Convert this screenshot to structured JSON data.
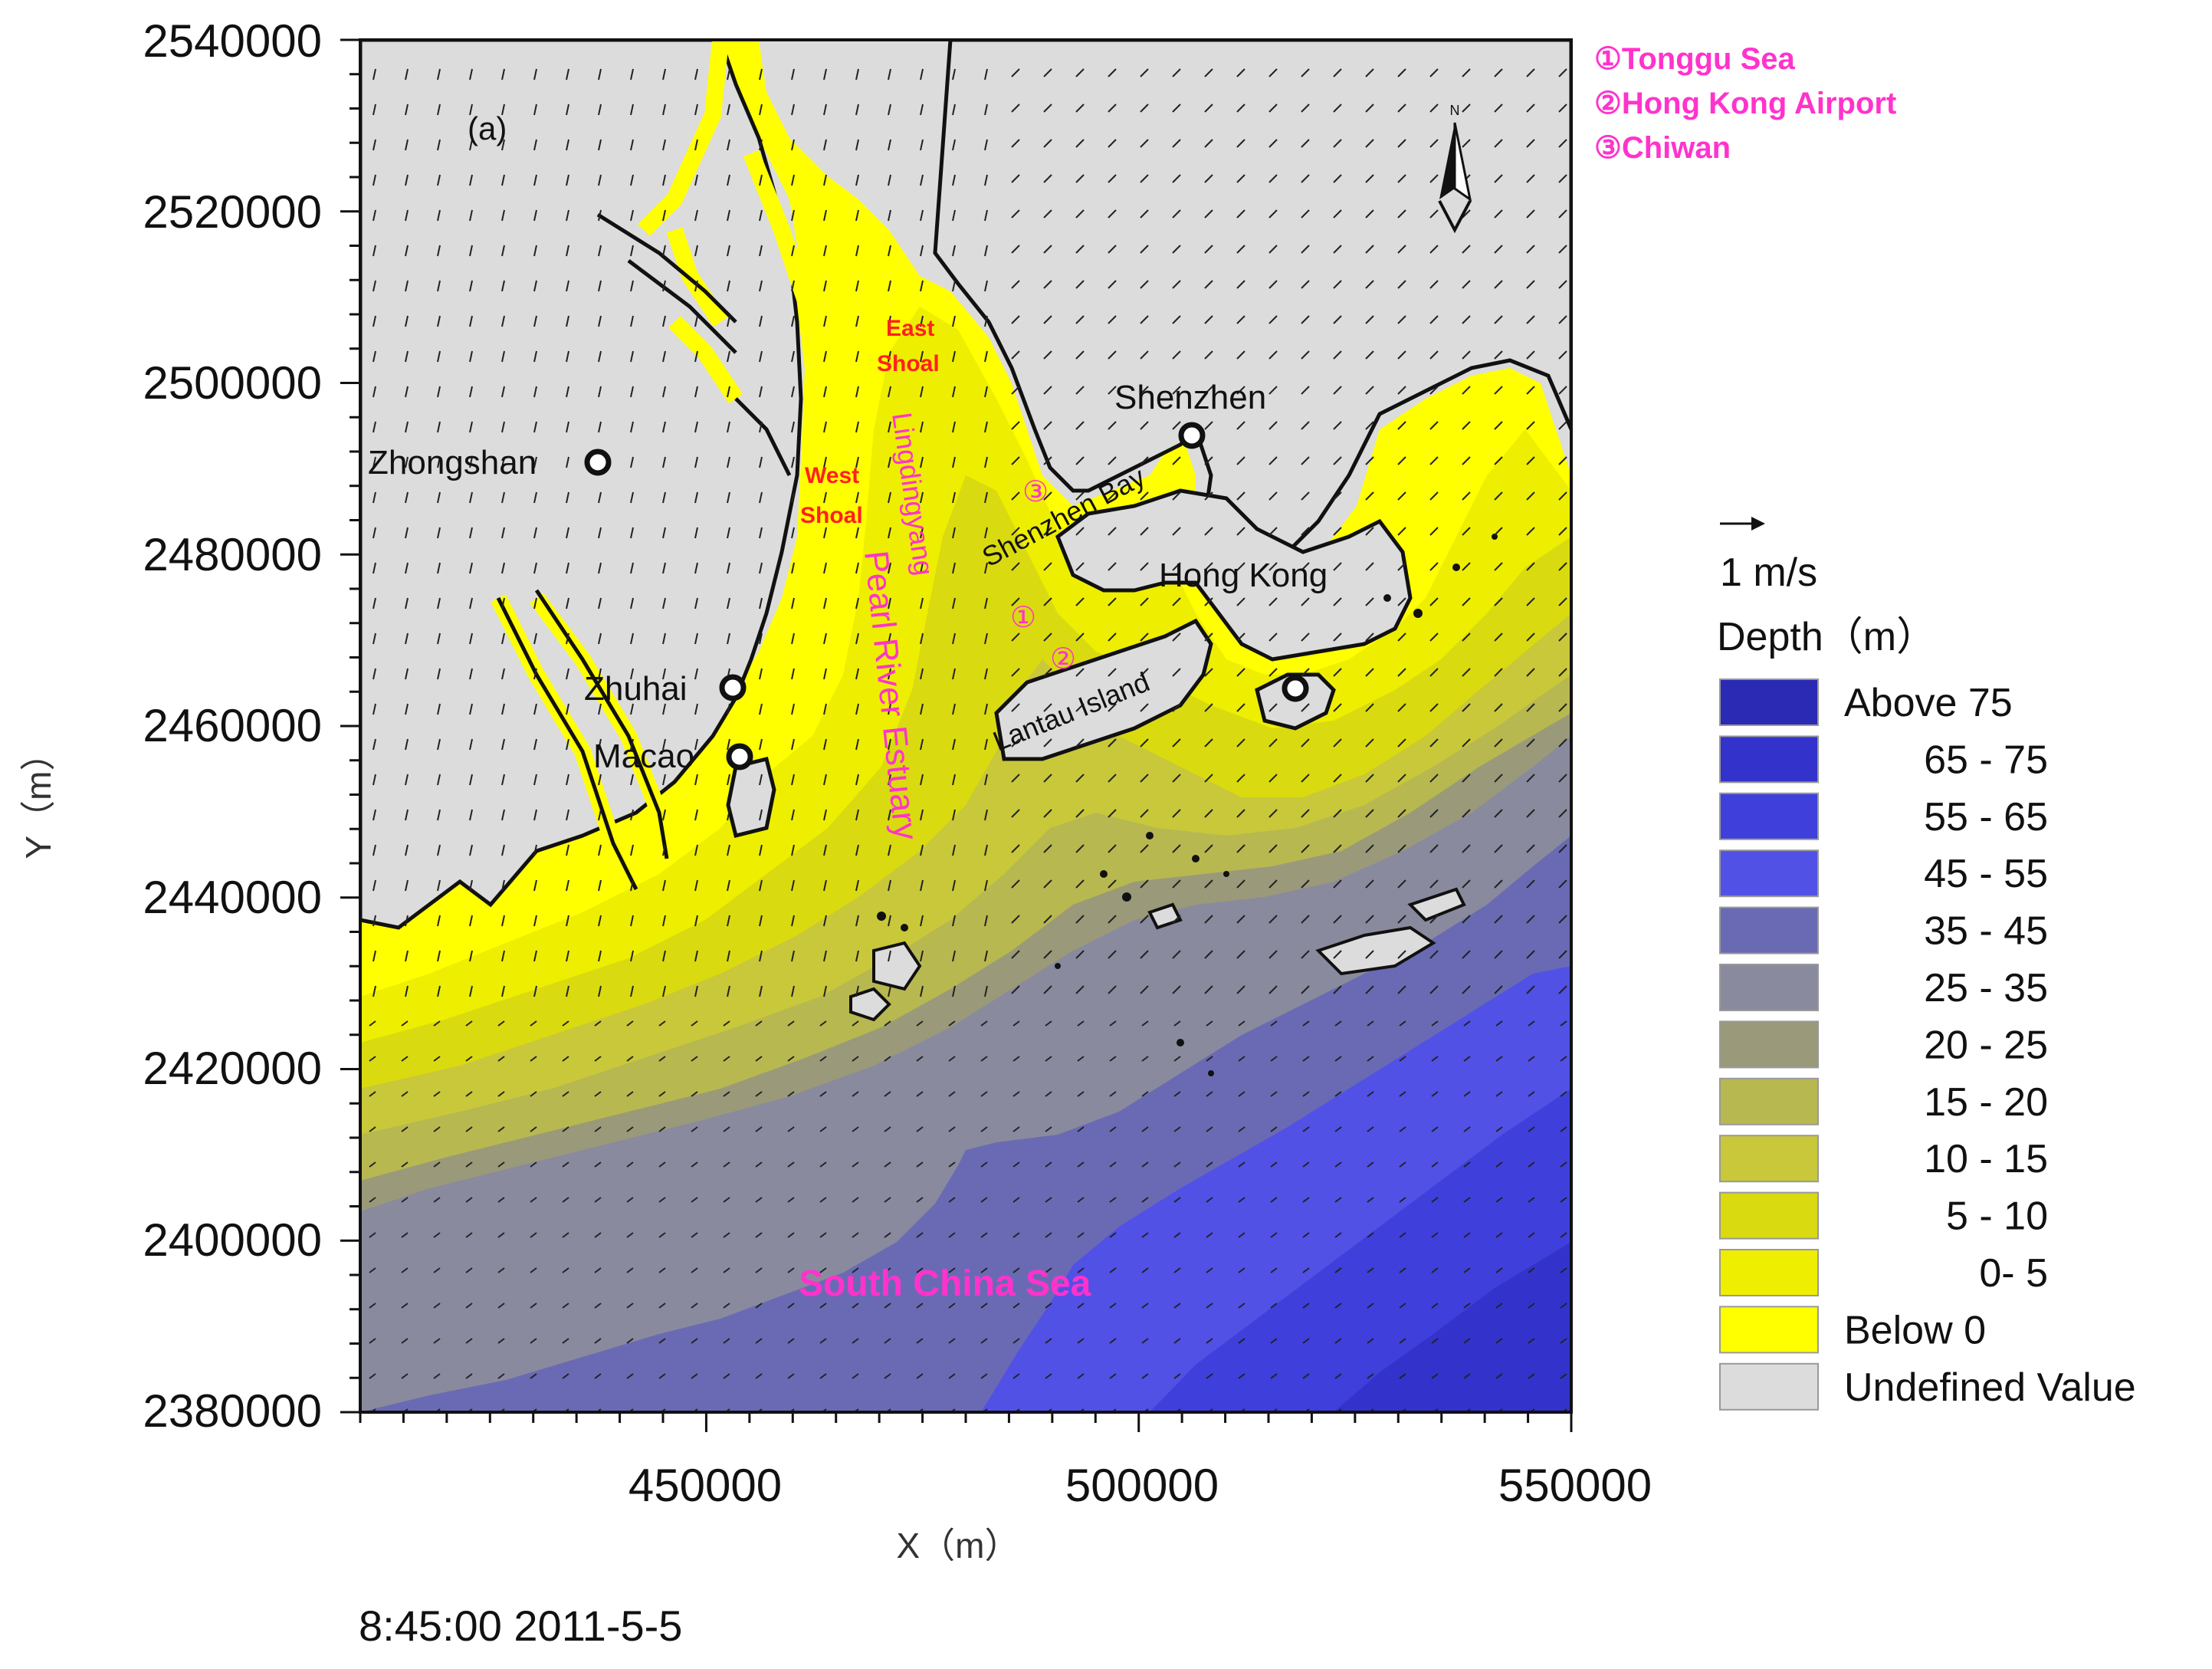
{
  "map": {
    "panel_label": "(a)",
    "x_axis": {
      "label": "X（m）",
      "range": [
        410000,
        550000
      ],
      "ticks": [
        "450000",
        "500000",
        "550000"
      ]
    },
    "y_axis": {
      "label": "Y（m）",
      "range": [
        2380000,
        2540000
      ],
      "ticks": [
        "2540000",
        "2520000",
        "2500000",
        "2480000",
        "2460000",
        "2440000",
        "2420000",
        "2400000",
        "2380000"
      ]
    },
    "timestamp": "8:45:00 2011-5-5",
    "north_arrow_label": "N",
    "cities": [
      {
        "label": "Shenzhen"
      },
      {
        "label": "Zhongshan"
      },
      {
        "label": "Hong Kong"
      },
      {
        "label": "Zhuhai"
      },
      {
        "label": "Macao"
      }
    ],
    "features": {
      "east_shoal_line1": "East",
      "east_shoal_line2": "Shoal",
      "west_shoal_line1": "West",
      "west_shoal_line2": "Shoal",
      "lingdingyang": "Lingdingyang",
      "pearl_river_estuary": "Pearl River Estuary",
      "shenzhen_bay": "Shenzhen Bay",
      "lantau_island": "Lantau Island",
      "south_china_sea": "South China Sea",
      "marker1": "①",
      "marker2": "②",
      "marker3": "③"
    },
    "key": [
      {
        "text": "①Tonggu Sea"
      },
      {
        "text": "②Hong Kong Airport"
      },
      {
        "text": "③Chiwan"
      }
    ]
  },
  "legend": {
    "vector_scale": "1 m/s",
    "title": "Depth（m）",
    "items": [
      {
        "label": "Above 75",
        "color": "#2a2ab4"
      },
      {
        "label": "65 - 75",
        "color": "#3333cc"
      },
      {
        "label": "55 - 65",
        "color": "#3f3fdc"
      },
      {
        "label": "45 - 55",
        "color": "#5151e6"
      },
      {
        "label": "35 - 45",
        "color": "#6a6ab4"
      },
      {
        "label": "25 - 35",
        "color": "#8a8a9e"
      },
      {
        "label": "20 - 25",
        "color": "#9a9a7a"
      },
      {
        "label": "15 - 20",
        "color": "#b8b850"
      },
      {
        "label": "10 - 15",
        "color": "#c8c83a"
      },
      {
        "label": "5 - 10",
        "color": "#dada10"
      },
      {
        "label": "0-   5",
        "color": "#eeee00"
      },
      {
        "label": "Below    0",
        "color": "#ffff00"
      },
      {
        "label": "Undefined Value",
        "color": "#dcdcdc"
      }
    ]
  }
}
